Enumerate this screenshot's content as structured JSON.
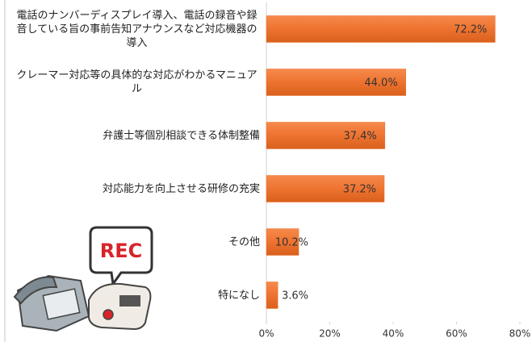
{
  "chart_data": {
    "type": "bar",
    "orientation": "horizontal",
    "categories": [
      "電話のナンバーディスプレイ導入、電話の録音や録音している旨の事前告知アナウンスなど対応機器の導入",
      "クレーマー対応等の具体的な対応がわかるマニュアル",
      "弁護士等個別相談できる体制整備",
      "対応能力を向上させる研修の充実",
      "その他",
      "特になし"
    ],
    "values": [
      72.2,
      44.0,
      37.4,
      37.2,
      10.2,
      3.6
    ],
    "value_labels": [
      "72.2%",
      "44.0%",
      "37.4%",
      "37.2%",
      "10.2%",
      "3.6%"
    ],
    "color": "#ee7330",
    "xlim": [
      0,
      80
    ],
    "xticks": [
      {
        "value": 0,
        "label": "0%"
      },
      {
        "value": 20,
        "label": "20%"
      },
      {
        "value": 40,
        "label": "40%"
      },
      {
        "value": 60,
        "label": "60%"
      },
      {
        "value": 80,
        "label": "80%"
      }
    ]
  }
}
